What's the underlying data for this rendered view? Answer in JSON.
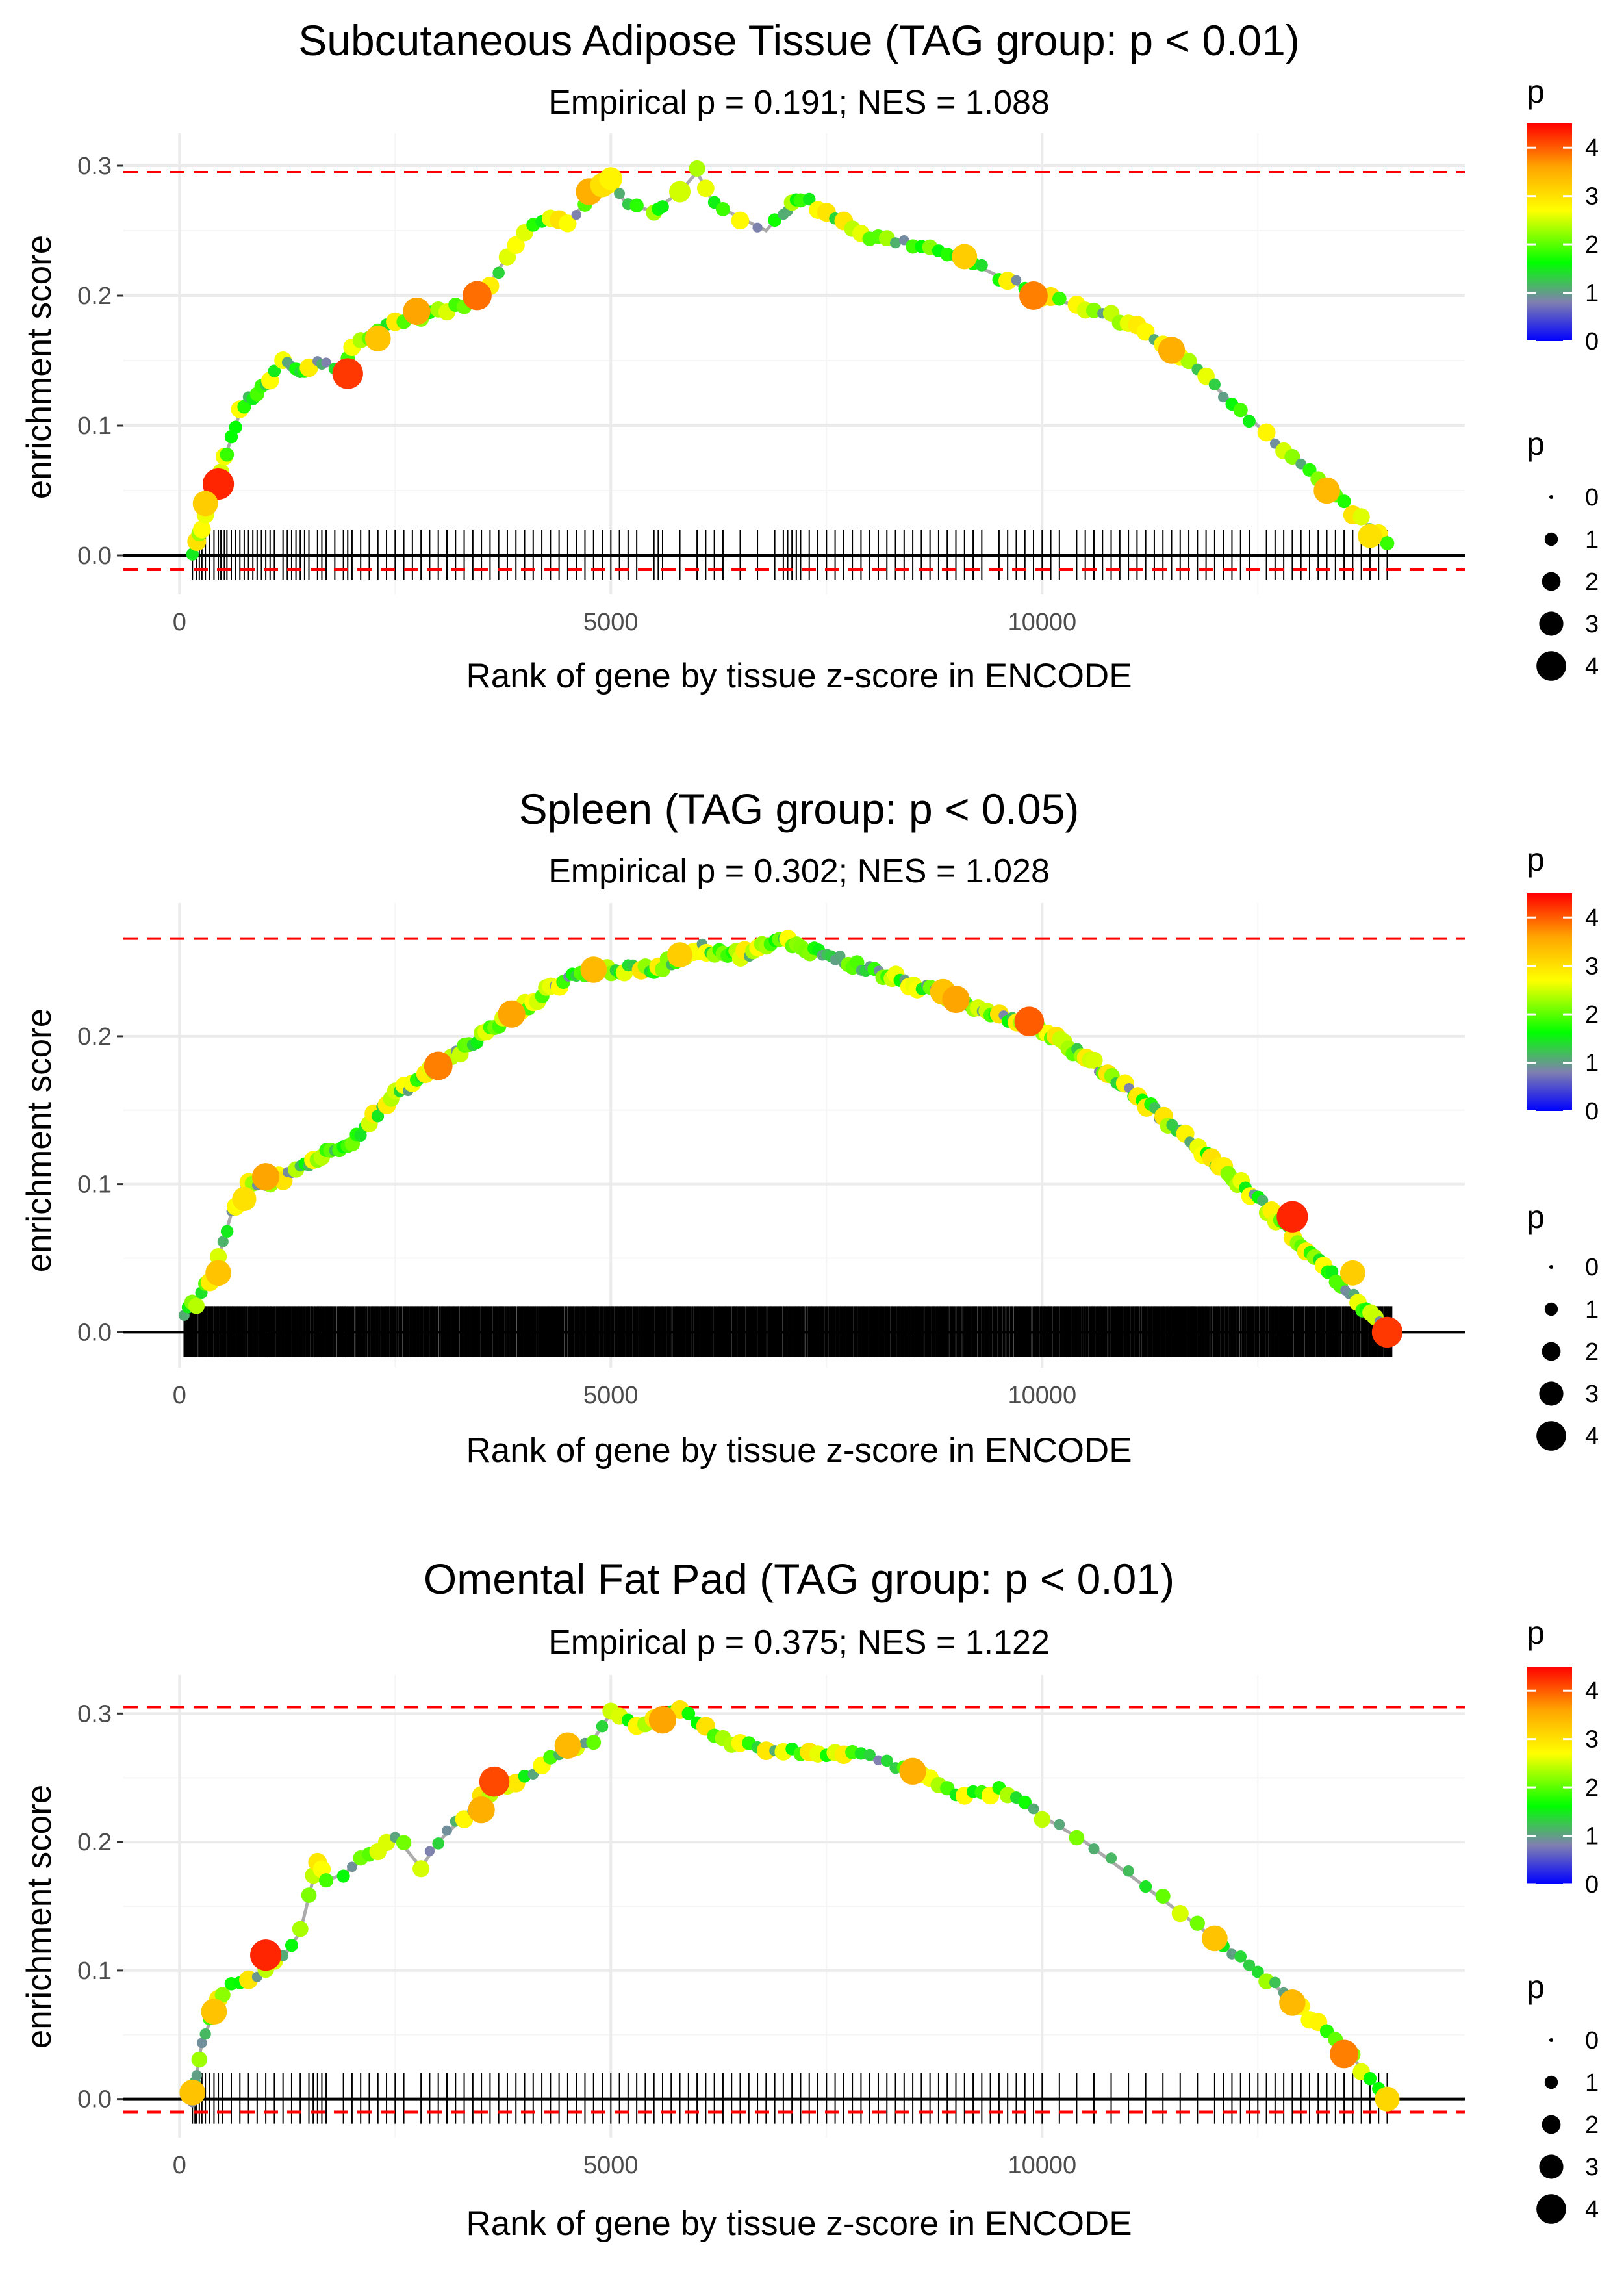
{
  "chart_data": [
    {
      "type": "line",
      "title": "Subcutaneous Adipose Tissue (TAG group: p < 0.01)",
      "subtitle": "Empirical p = 0.191; NES = 1.088",
      "xlabel": "Rank of gene by tissue z-score in ENCODE",
      "ylabel": "enrichment score",
      "xlim": [
        -650,
        14900
      ],
      "ylim": [
        -0.03,
        0.325
      ],
      "x_ticks": [
        0,
        5000,
        10000
      ],
      "x_tick_labels": [
        "0",
        "5000",
        "10000"
      ],
      "y_ticks": [
        0.0,
        0.1,
        0.2,
        0.3
      ],
      "y_tick_labels": [
        "0.0",
        "0.1",
        "0.2",
        "0.3"
      ],
      "max_line": 0.295,
      "min_line": -0.011,
      "curve_x": [
        150,
        250,
        400,
        500,
        600,
        700,
        800,
        1000,
        1200,
        1400,
        1600,
        1800,
        1900,
        2000,
        2200,
        2500,
        2800,
        3200,
        3500,
        3800,
        4000,
        4200,
        4500,
        4800,
        5000,
        5200,
        5500,
        5800,
        6000,
        6200,
        6500,
        6800,
        7000,
        7200,
        7500,
        8000,
        8500,
        9000,
        9500,
        10000,
        10500,
        11000,
        11500,
        12000,
        12500,
        13000,
        13500,
        14000
      ],
      "curve_y": [
        0.0,
        0.02,
        0.05,
        0.07,
        0.09,
        0.11,
        0.12,
        0.13,
        0.15,
        0.14,
        0.15,
        0.145,
        0.14,
        0.16,
        0.17,
        0.18,
        0.185,
        0.19,
        0.2,
        0.23,
        0.25,
        0.26,
        0.255,
        0.28,
        0.285,
        0.27,
        0.265,
        0.28,
        0.295,
        0.27,
        0.26,
        0.25,
        0.265,
        0.275,
        0.265,
        0.245,
        0.24,
        0.23,
        0.215,
        0.2,
        0.19,
        0.18,
        0.16,
        0.13,
        0.1,
        0.07,
        0.04,
        0.01
      ],
      "gene_hits": [
        150,
        200,
        230,
        260,
        300,
        350,
        400,
        450,
        480,
        520,
        550,
        600,
        650,
        700,
        750,
        800,
        850,
        900,
        950,
        1000,
        1050,
        1100,
        1200,
        1250,
        1300,
        1350,
        1400,
        1450,
        1500,
        1600,
        1650,
        1700,
        1800,
        1900,
        1950,
        2000,
        2100,
        2200,
        2300,
        2400,
        2500,
        2600,
        2700,
        2800,
        2900,
        3000,
        3100,
        3200,
        3300,
        3400,
        3500,
        3600,
        3700,
        3800,
        3900,
        4000,
        4100,
        4200,
        4300,
        4400,
        4500,
        4600,
        4700,
        4800,
        4900,
        5000,
        5100,
        5200,
        5300,
        5500,
        5550,
        5600,
        5800,
        6000,
        6100,
        6200,
        6300,
        6500,
        6700,
        6900,
        7000,
        7050,
        7100,
        7150,
        7200,
        7300,
        7400,
        7500,
        7600,
        7700,
        7800,
        7900,
        8000,
        8100,
        8200,
        8300,
        8400,
        8500,
        8600,
        8700,
        8800,
        8900,
        9000,
        9100,
        9200,
        9300,
        9500,
        9600,
        9700,
        9800,
        9900,
        10000,
        10100,
        10200,
        10400,
        10500,
        10600,
        10700,
        10800,
        10900,
        11000,
        11100,
        11200,
        11300,
        11400,
        11500,
        11600,
        11700,
        11800,
        11900,
        12000,
        12100,
        12200,
        12300,
        12400,
        12600,
        12700,
        12800,
        12900,
        13000,
        13100,
        13200,
        13300,
        13400,
        13500,
        13600,
        13700,
        13800,
        13900,
        14000
      ],
      "highlight_points": [
        [
          450,
          0.055,
          4.3
        ],
        [
          1950,
          0.14,
          4.2
        ],
        [
          3450,
          0.2,
          3.9
        ],
        [
          2750,
          0.188,
          3.6
        ],
        [
          4750,
          0.28,
          3.5
        ],
        [
          4900,
          0.285,
          3.0
        ],
        [
          9900,
          0.2,
          3.8
        ],
        [
          11500,
          0.158,
          3.5
        ],
        [
          13300,
          0.05,
          3.4
        ],
        [
          13800,
          0.015,
          3.0
        ],
        [
          9100,
          0.23,
          3.2
        ],
        [
          2300,
          0.167,
          3.3
        ],
        [
          300,
          0.04,
          3.2
        ],
        [
          5000,
          0.29,
          2.8
        ],
        [
          5800,
          0.28,
          2.5
        ]
      ]
    },
    {
      "type": "line",
      "title": "Spleen (TAG group: p < 0.05)",
      "subtitle": "Empirical p = 0.302; NES = 1.028",
      "xlabel": "Rank of gene by tissue z-score in ENCODE",
      "ylabel": "enrichment score",
      "xlim": [
        -650,
        14900
      ],
      "ylim": [
        -0.024,
        0.29
      ],
      "x_ticks": [
        0,
        5000,
        10000
      ],
      "x_tick_labels": [
        "0",
        "5000",
        "10000"
      ],
      "y_ticks": [
        0.0,
        0.1,
        0.2
      ],
      "y_tick_labels": [
        "0.0",
        "0.1",
        "0.2"
      ],
      "max_line": 0.266,
      "min_line": 0.0,
      "curve_x": [
        0,
        200,
        400,
        600,
        800,
        1000,
        1200,
        1500,
        2000,
        2500,
        3000,
        3500,
        4000,
        4500,
        5000,
        5500,
        6000,
        6500,
        7000,
        7500,
        8000,
        8500,
        9000,
        9500,
        10000,
        10500,
        11000,
        11500,
        12000,
        12500,
        13000,
        13500,
        14000
      ],
      "curve_y": [
        0.01,
        0.02,
        0.04,
        0.08,
        0.1,
        0.1,
        0.105,
        0.115,
        0.13,
        0.16,
        0.18,
        0.2,
        0.22,
        0.24,
        0.245,
        0.245,
        0.26,
        0.255,
        0.265,
        0.255,
        0.245,
        0.235,
        0.225,
        0.215,
        0.205,
        0.185,
        0.165,
        0.14,
        0.115,
        0.09,
        0.06,
        0.03,
        0.0
      ],
      "gene_hits_count": 1400,
      "gene_hits_range": [
        50,
        14050
      ],
      "highlight_points": [
        [
          750,
          0.09,
          3.0
        ],
        [
          1000,
          0.105,
          3.6
        ],
        [
          3000,
          0.18,
          3.8
        ],
        [
          3850,
          0.215,
          3.6
        ],
        [
          4800,
          0.245,
          3.4
        ],
        [
          5800,
          0.255,
          3.2
        ],
        [
          8850,
          0.23,
          3.3
        ],
        [
          9000,
          0.225,
          3.6
        ],
        [
          9850,
          0.21,
          4.0
        ],
        [
          12900,
          0.078,
          4.3
        ],
        [
          13600,
          0.04,
          3.2
        ],
        [
          14000,
          0.0,
          4.2
        ],
        [
          450,
          0.04,
          3.3
        ]
      ]
    },
    {
      "type": "line",
      "title": "Omental Fat Pad (TAG group: p < 0.01)",
      "subtitle": "Empirical p = 0.375; NES = 1.122",
      "xlabel": "Rank of gene by tissue z-score in ENCODE",
      "ylabel": "enrichment score",
      "xlim": [
        -650,
        14900
      ],
      "ylim": [
        -0.03,
        0.33
      ],
      "x_ticks": [
        0,
        5000,
        10000
      ],
      "x_tick_labels": [
        "0",
        "5000",
        "10000"
      ],
      "y_ticks": [
        0.0,
        0.1,
        0.2,
        0.3
      ],
      "y_tick_labels": [
        "0.0",
        "0.1",
        "0.2",
        "0.3"
      ],
      "max_line": 0.305,
      "min_line": -0.01,
      "curve_x": [
        150,
        250,
        400,
        600,
        800,
        1000,
        1200,
        1400,
        1600,
        1700,
        1900,
        2200,
        2500,
        2800,
        3000,
        3300,
        3600,
        3800,
        4000,
        4200,
        4500,
        4800,
        5000,
        5300,
        5600,
        5800,
        6000,
        6300,
        6600,
        7000,
        7500,
        8000,
        8500,
        9000,
        9500,
        10000,
        10500,
        11000,
        11500,
        12000,
        12500,
        13000,
        13500,
        14000
      ],
      "curve_y": [
        0.0,
        0.04,
        0.07,
        0.09,
        0.095,
        0.1,
        0.11,
        0.13,
        0.185,
        0.17,
        0.175,
        0.19,
        0.205,
        0.18,
        0.2,
        0.22,
        0.24,
        0.245,
        0.25,
        0.26,
        0.27,
        0.28,
        0.3,
        0.29,
        0.3,
        0.305,
        0.295,
        0.28,
        0.275,
        0.27,
        0.27,
        0.265,
        0.255,
        0.235,
        0.24,
        0.22,
        0.2,
        0.175,
        0.15,
        0.125,
        0.1,
        0.07,
        0.04,
        0.0
      ],
      "gene_hits": [
        150,
        180,
        200,
        230,
        260,
        300,
        350,
        400,
        450,
        500,
        600,
        700,
        800,
        900,
        1000,
        1100,
        1200,
        1300,
        1400,
        1500,
        1550,
        1600,
        1650,
        1700,
        1900,
        2000,
        2100,
        2200,
        2300,
        2400,
        2500,
        2600,
        2800,
        2900,
        3000,
        3100,
        3200,
        3300,
        3400,
        3500,
        3600,
        3700,
        3800,
        3900,
        4000,
        4100,
        4200,
        4300,
        4400,
        4500,
        4600,
        4700,
        4800,
        4900,
        5000,
        5100,
        5200,
        5300,
        5400,
        5500,
        5600,
        5700,
        5800,
        5900,
        6000,
        6100,
        6200,
        6300,
        6400,
        6500,
        6600,
        6700,
        6800,
        6900,
        7000,
        7100,
        7200,
        7300,
        7400,
        7500,
        7600,
        7700,
        7800,
        7900,
        8000,
        8100,
        8200,
        8300,
        8400,
        8500,
        8600,
        8700,
        8800,
        8900,
        9000,
        9100,
        9200,
        9300,
        9400,
        9500,
        9600,
        9700,
        9800,
        9900,
        10000,
        10200,
        10400,
        10600,
        10800,
        11000,
        11200,
        11400,
        11600,
        11800,
        12000,
        12100,
        12200,
        12300,
        12400,
        12500,
        12600,
        12700,
        12800,
        12900,
        13000,
        13100,
        13200,
        13300,
        13400,
        13500,
        13600,
        13700,
        13800,
        13900,
        14000
      ],
      "highlight_points": [
        [
          150,
          0.005,
          3.3
        ],
        [
          1000,
          0.112,
          4.3
        ],
        [
          3650,
          0.247,
          4.1
        ],
        [
          3500,
          0.225,
          3.5
        ],
        [
          4500,
          0.275,
          3.4
        ],
        [
          5600,
          0.295,
          3.6
        ],
        [
          8500,
          0.255,
          3.5
        ],
        [
          12000,
          0.125,
          3.3
        ],
        [
          12900,
          0.075,
          3.4
        ],
        [
          13500,
          0.035,
          3.8
        ],
        [
          14000,
          0.0,
          3.1
        ],
        [
          400,
          0.068,
          3.3
        ]
      ]
    }
  ],
  "legend": {
    "color_title": "p",
    "color_labels": [
      "4",
      "3",
      "2",
      "1",
      "0"
    ],
    "size_title": "p",
    "size_labels": [
      "0",
      "1",
      "2",
      "3",
      "4"
    ]
  },
  "colors": {
    "max_min_line": "#ff0000",
    "curve": "#aaaaaa",
    "grid": "#ebebeb",
    "zero_line": "#000000",
    "gradient": [
      "#0000ff",
      "#8080b0",
      "#00ff00",
      "#ffff00",
      "#ffa500",
      "#ff0000"
    ]
  }
}
